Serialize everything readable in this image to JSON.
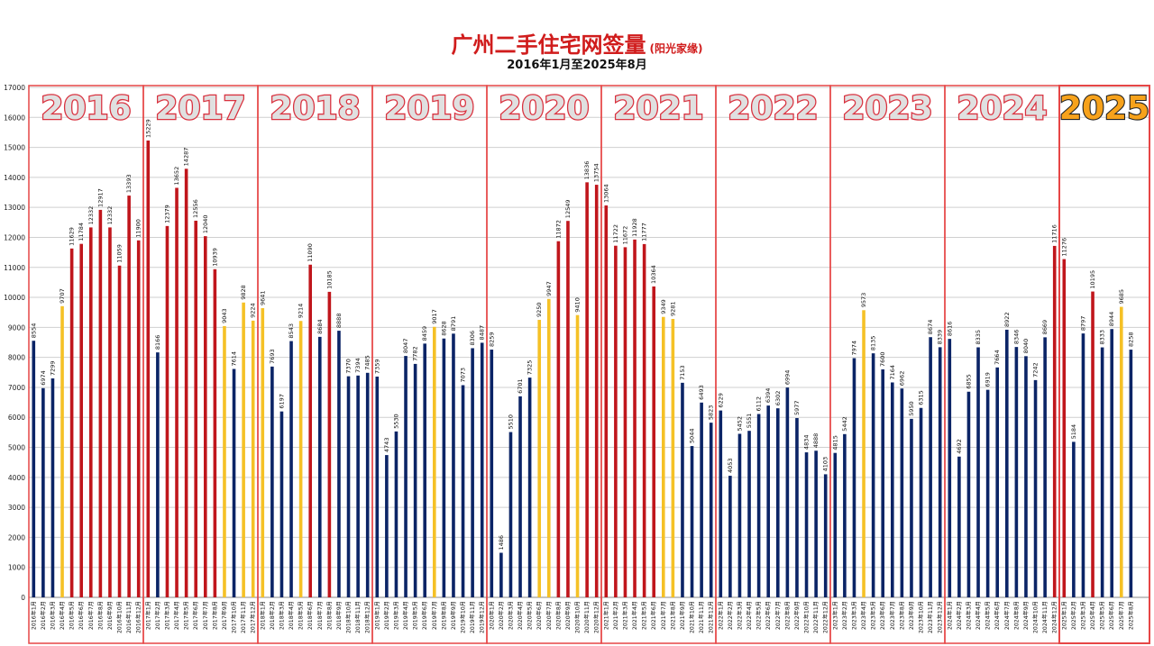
{
  "colors": {
    "normal": "#0b2466",
    "high": "#c0161c",
    "notable": "#f5c126",
    "frame": "#e64646",
    "year_label_fill": "#e0e0e0",
    "year_label_highlight": "#f7a21b"
  },
  "chart_data": {
    "type": "bar",
    "title": "广州二手住宅网签量",
    "title_note": "(阳光家缘)",
    "subtitle": "2016年1月至2025年8月",
    "ylim": [
      0,
      17000
    ],
    "yticks": [
      0,
      1000,
      2000,
      3000,
      4000,
      5000,
      6000,
      7000,
      8000,
      9000,
      10000,
      11000,
      12000,
      13000,
      14000,
      15000,
      16000,
      17000
    ],
    "grid": true,
    "years": [
      "2016",
      "2017",
      "2018",
      "2019",
      "2020",
      "2021",
      "2022",
      "2023",
      "2024",
      "2025"
    ],
    "highlighted_year": "2025",
    "categories": [
      "2016年1月",
      "2016年2月",
      "2016年3月",
      "2016年4月",
      "2016年5月",
      "2016年6月",
      "2016年7月",
      "2016年8月",
      "2016年9月",
      "2016年10月",
      "2016年11月",
      "2016年12月",
      "2017年1月",
      "2017年2月",
      "2017年3月",
      "2017年4月",
      "2017年5月",
      "2017年6月",
      "2017年7月",
      "2017年8月",
      "2017年9月",
      "2017年10月",
      "2017年11月",
      "2017年12月",
      "2018年1月",
      "2018年2月",
      "2018年3月",
      "2018年4月",
      "2018年5月",
      "2018年6月",
      "2018年7月",
      "2018年8月",
      "2018年9月",
      "2018年10月",
      "2018年11月",
      "2018年12月",
      "2019年1月",
      "2019年2月",
      "2019年3月",
      "2019年4月",
      "2019年5月",
      "2019年6月",
      "2019年7月",
      "2019年8月",
      "2019年9月",
      "2019年10月",
      "2019年11月",
      "2019年12月",
      "2020年1月",
      "2020年2月",
      "2020年3月",
      "2020年4月",
      "2020年5月",
      "2020年6月",
      "2020年7月",
      "2020年8月",
      "2020年9月",
      "2020年10月",
      "2020年11月",
      "2020年12月",
      "2021年1月",
      "2021年2月",
      "2021年3月",
      "2021年4月",
      "2021年5月",
      "2021年6月",
      "2021年7月",
      "2021年8月",
      "2021年9月",
      "2021年10月",
      "2021年11月",
      "2021年12月",
      "2022年1月",
      "2022年2月",
      "2022年3月",
      "2022年4月",
      "2022年5月",
      "2022年6月",
      "2022年7月",
      "2022年8月",
      "2022年9月",
      "2022年10月",
      "2022年11月",
      "2022年12月",
      "2023年1月",
      "2023年2月",
      "2023年3月",
      "2023年4月",
      "2023年5月",
      "2023年6月",
      "2023年7月",
      "2023年8月",
      "2023年9月",
      "2023年10月",
      "2023年11月",
      "2023年12月",
      "2024年1月",
      "2024年2月",
      "2024年3月",
      "2024年4月",
      "2024年5月",
      "2024年6月",
      "2024年7月",
      "2024年8月",
      "2024年9月",
      "2024年10月",
      "2024年11月",
      "2024年12月",
      "2025年1月",
      "2025年2月",
      "2025年3月",
      "2025年4月",
      "2025年5月",
      "2025年6月",
      "2025年7月",
      "2025年8月"
    ],
    "values": [
      8554,
      6974,
      7299,
      9707,
      11629,
      11784,
      12332,
      12917,
      12332,
      11059,
      13393,
      11900,
      15229,
      8166,
      12379,
      13652,
      14287,
      12556,
      12040,
      10939,
      9043,
      7614,
      9828,
      9224,
      9641,
      7693,
      6197,
      8543,
      9214,
      11090,
      8684,
      10185,
      8888,
      7370,
      7394,
      7485,
      7359,
      4743,
      5530,
      8047,
      7782,
      8459,
      9017,
      8628,
      8791,
      7073,
      8306,
      8487,
      8259,
      1486,
      5510,
      6701,
      7325,
      9250,
      9947,
      11872,
      12549,
      9410,
      13836,
      13754,
      13064,
      11722,
      11672,
      11928,
      11777,
      10364,
      9349,
      9281,
      7153,
      5044,
      6493,
      5823,
      6229,
      4053,
      5452,
      5551,
      6112,
      6394,
      6302,
      6994,
      5977,
      4834,
      4888,
      4103,
      4815,
      5442,
      7974,
      9573,
      8135,
      7600,
      7164,
      6962,
      5950,
      6315,
      8674,
      8339,
      8616,
      4692,
      6855,
      8335,
      6919,
      7664,
      8922,
      8346,
      8040,
      7242,
      8669,
      11716,
      11276,
      5184,
      8797,
      10195,
      8333,
      8944,
      9685,
      8258
    ],
    "bar_class": [
      "n",
      "n",
      "n",
      "y",
      "r",
      "r",
      "r",
      "r",
      "r",
      "r",
      "r",
      "r",
      "r",
      "n",
      "r",
      "r",
      "r",
      "r",
      "r",
      "r",
      "y",
      "n",
      "y",
      "y",
      "y",
      "n",
      "n",
      "n",
      "y",
      "r",
      "n",
      "r",
      "n",
      "n",
      "n",
      "n",
      "n",
      "n",
      "n",
      "n",
      "n",
      "n",
      "y",
      "n",
      "n",
      "n",
      "n",
      "n",
      "n",
      "n",
      "n",
      "n",
      "n",
      "y",
      "y",
      "r",
      "r",
      "y",
      "r",
      "r",
      "r",
      "r",
      "r",
      "r",
      "r",
      "r",
      "y",
      "y",
      "n",
      "n",
      "n",
      "n",
      "n",
      "n",
      "n",
      "n",
      "n",
      "n",
      "n",
      "n",
      "n",
      "n",
      "n",
      "n",
      "n",
      "n",
      "n",
      "y",
      "n",
      "n",
      "n",
      "n",
      "n",
      "n",
      "n",
      "n",
      "n",
      "n",
      "n",
      "n",
      "n",
      "n",
      "n",
      "n",
      "n",
      "n",
      "n",
      "r",
      "r",
      "n",
      "n",
      "r",
      "n",
      "n",
      "y",
      "n"
    ]
  }
}
